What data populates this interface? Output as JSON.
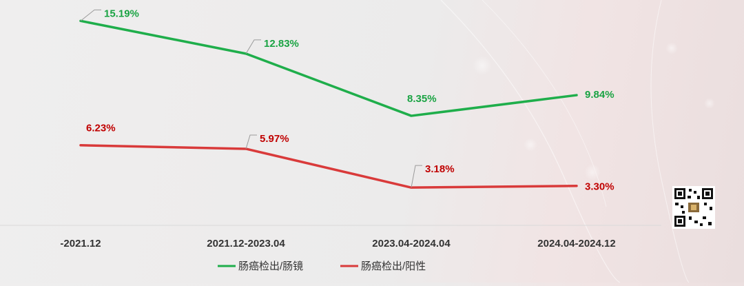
{
  "chart_data": {
    "type": "line",
    "categories": [
      "-2021.12",
      "2021.12-2023.04",
      "2023.04-2024.04",
      "2024.04-2024.12"
    ],
    "series": [
      {
        "name": "肠癌检出/肠镜",
        "values": [
          15.19,
          12.83,
          8.35,
          9.84
        ],
        "labels": [
          "15.19%",
          "12.83%",
          "8.35%",
          "9.84%"
        ],
        "color": "#1fae4b",
        "label_color": "#1aa343"
      },
      {
        "name": "肠癌检出/阳性",
        "values": [
          6.23,
          5.97,
          3.18,
          3.3
        ],
        "labels": [
          "6.23%",
          "5.97%",
          "3.18%",
          "3.30%"
        ],
        "color": "#d93a3a",
        "label_color": "#c00000"
      }
    ],
    "title": "",
    "xlabel": "",
    "ylabel": "",
    "ylim": [
      1.3,
      16.2
    ],
    "grid": false,
    "legend_position": "bottom"
  },
  "decor": {
    "qr_code": "qr-code-icon"
  }
}
